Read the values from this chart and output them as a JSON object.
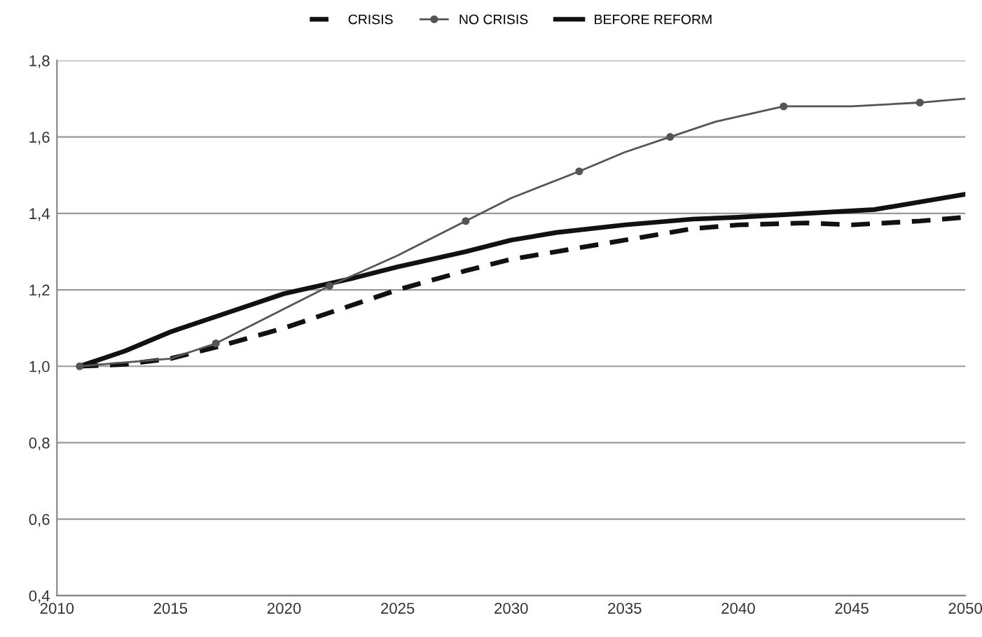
{
  "chart_data": {
    "type": "line",
    "xlim": [
      2010,
      2050
    ],
    "xticks": [
      2010,
      2015,
      2020,
      2025,
      2030,
      2035,
      2040,
      2045,
      2050
    ],
    "ylim": [
      0.4,
      1.8
    ],
    "yticks": [
      {
        "value": 0.4,
        "label": "0,4"
      },
      {
        "value": 0.6,
        "label": "0,6"
      },
      {
        "value": 0.8,
        "label": "0,8"
      },
      {
        "value": 1.0,
        "label": "1,0"
      },
      {
        "value": 1.2,
        "label": "1,2"
      },
      {
        "value": 1.4,
        "label": "1,4"
      },
      {
        "value": 1.6,
        "label": "1,6"
      },
      {
        "value": 1.8,
        "label": "1,8"
      }
    ],
    "grid": "y",
    "legend": "top",
    "series": [
      {
        "name": "CRISIS",
        "color": "#111111",
        "line_style": "dashed",
        "marker": "none",
        "x": [
          2011,
          2013,
          2015,
          2017,
          2020,
          2023,
          2025,
          2028,
          2030,
          2032,
          2035,
          2038,
          2040,
          2043,
          2045,
          2048,
          2050
        ],
        "values": [
          1.0,
          1.005,
          1.02,
          1.05,
          1.1,
          1.16,
          1.2,
          1.25,
          1.28,
          1.3,
          1.33,
          1.36,
          1.37,
          1.375,
          1.37,
          1.38,
          1.39
        ]
      },
      {
        "name": "NO CRISIS",
        "color": "#555555",
        "line_style": "solid",
        "marker": "circle",
        "x": [
          2011,
          2015,
          2017,
          2020,
          2022,
          2025,
          2028,
          2030,
          2033,
          2035,
          2037,
          2039,
          2042,
          2045,
          2048,
          2050
        ],
        "values": [
          1.0,
          1.02,
          1.06,
          1.15,
          1.21,
          1.29,
          1.38,
          1.44,
          1.51,
          1.56,
          1.6,
          1.64,
          1.68,
          1.68,
          1.69,
          1.7
        ]
      },
      {
        "name": "BEFORE REFORM",
        "color": "#111111",
        "line_style": "solid",
        "marker": "none",
        "x": [
          2011,
          2013,
          2015,
          2018,
          2020,
          2023,
          2025,
          2028,
          2030,
          2032,
          2035,
          2038,
          2040,
          2043,
          2046,
          2048,
          2050
        ],
        "values": [
          1.0,
          1.04,
          1.09,
          1.15,
          1.19,
          1.23,
          1.26,
          1.3,
          1.33,
          1.35,
          1.37,
          1.385,
          1.39,
          1.4,
          1.41,
          1.43,
          1.45
        ]
      }
    ]
  }
}
